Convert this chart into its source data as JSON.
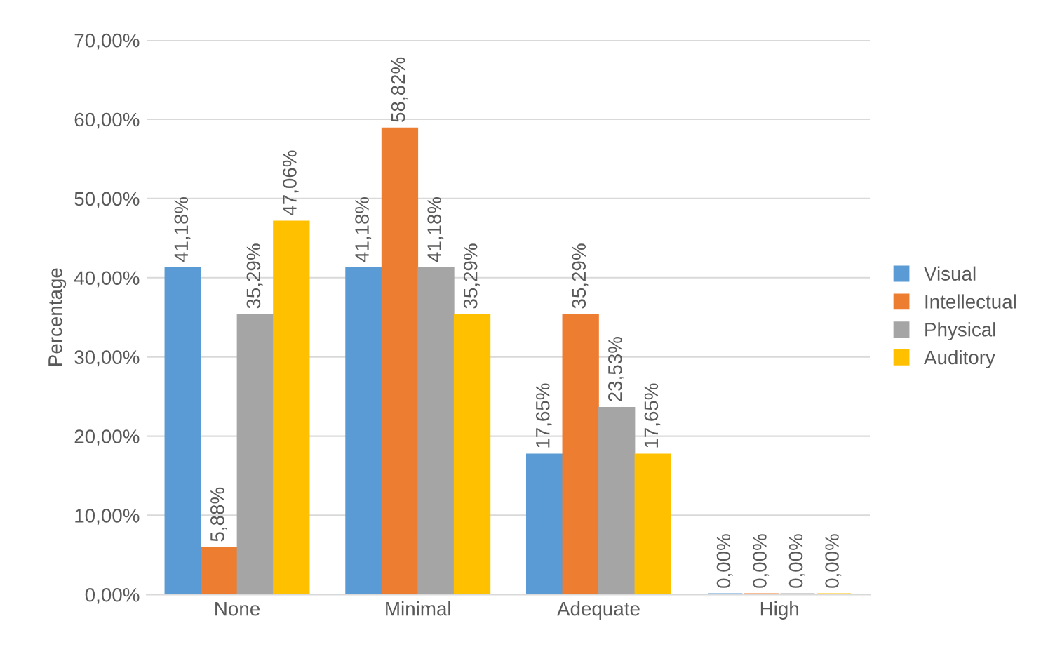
{
  "chart_data": {
    "type": "bar",
    "ylabel": "Percentage",
    "categories": [
      "None",
      "Minimal",
      "Adequate",
      "High"
    ],
    "series": [
      {
        "name": "Visual",
        "color": "#5b9bd5",
        "values": [
          41.18,
          41.18,
          17.65,
          0.0
        ],
        "value_labels": [
          "41,18%",
          "41,18%",
          "17,65%",
          "0,00%"
        ]
      },
      {
        "name": "Intellectual",
        "color": "#ed7d31",
        "values": [
          5.88,
          58.82,
          35.29,
          0.0
        ],
        "value_labels": [
          "5,88%",
          "58,82%",
          "35,29%",
          "0,00%"
        ]
      },
      {
        "name": "Physical",
        "color": "#a5a5a5",
        "values": [
          35.29,
          41.18,
          23.53,
          0.0
        ],
        "value_labels": [
          "35,29%",
          "41,18%",
          "23,53%",
          "0,00%"
        ]
      },
      {
        "name": "Auditory",
        "color": "#ffc000",
        "values": [
          47.06,
          35.29,
          17.65,
          0.0
        ],
        "value_labels": [
          "47,06%",
          "35,29%",
          "17,65%",
          "0,00%"
        ]
      }
    ],
    "ylim": [
      0,
      70
    ],
    "yticks": [
      {
        "value": 0,
        "label": "0,00%"
      },
      {
        "value": 10,
        "label": "10,00%"
      },
      {
        "value": 20,
        "label": "20,00%"
      },
      {
        "value": 30,
        "label": "30,00%"
      },
      {
        "value": 40,
        "label": "40,00%"
      },
      {
        "value": 50,
        "label": "50,00%"
      },
      {
        "value": 60,
        "label": "60,00%"
      },
      {
        "value": 70,
        "label": "70,00%"
      }
    ],
    "grid": "y",
    "legend": "right"
  }
}
